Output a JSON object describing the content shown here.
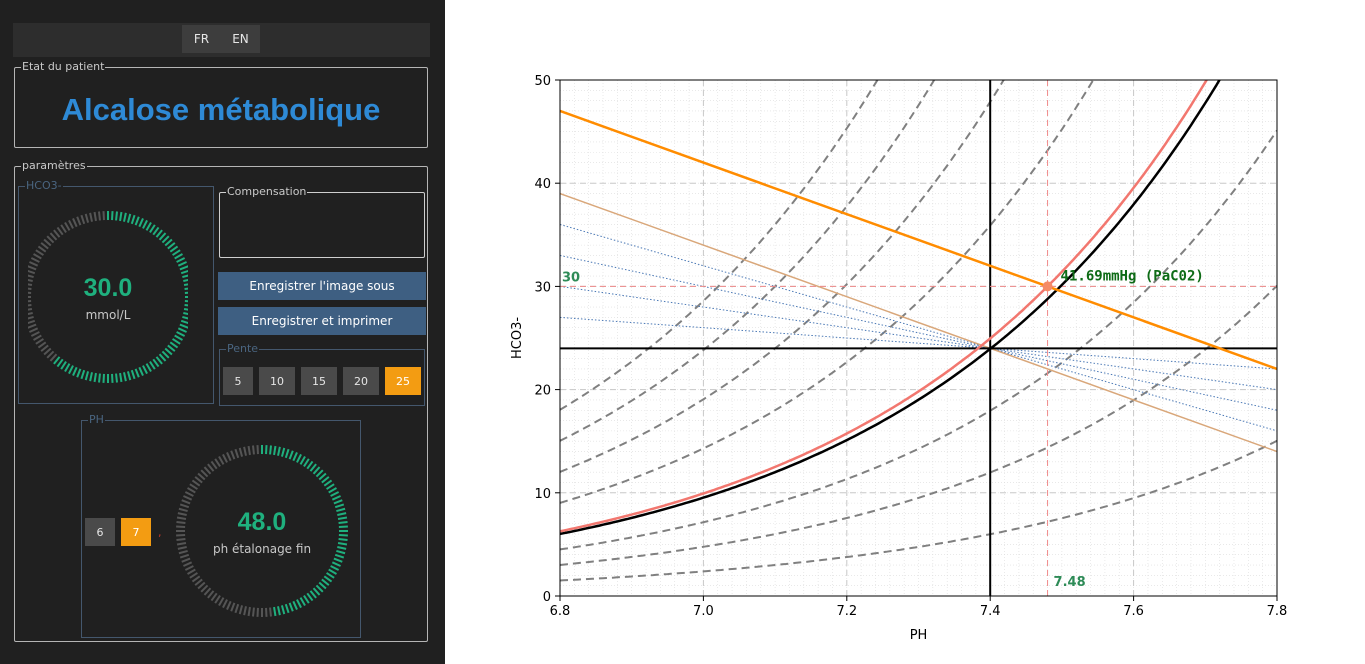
{
  "language": {
    "fr_label": "FR",
    "en_label": "EN",
    "selected": "EN"
  },
  "patient_state": {
    "group_title": "Etat du patient",
    "diagnosis": "Alcalose métabolique",
    "diagnosis_color": "#2e8ad6"
  },
  "parameters": {
    "group_title": "paramètres",
    "hco3": {
      "group_title": "HCO3-",
      "value": "30.0",
      "unit": "mmol/L",
      "gauge_fraction": 0.62
    },
    "compensation": {
      "group_title": "Compensation",
      "text": ""
    },
    "save_image_button": "Enregistrer l'image sous",
    "save_print_button": "Enregistrer et imprimer",
    "slope": {
      "group_title": "Pente",
      "options": [
        "5",
        "10",
        "15",
        "20",
        "25"
      ],
      "selected": "25"
    },
    "ph": {
      "group_title": "PH",
      "integer_options": [
        "6",
        "7"
      ],
      "selected_integer": "7",
      "separator": ",",
      "value": "48.0",
      "unit": "ph étalonage fin",
      "gauge_fraction": 0.48
    }
  },
  "colors": {
    "accent": "#f39c12",
    "gauge_active": "#1fb07e",
    "gauge_inactive": "#555555",
    "button_blue": "#3e5f82",
    "panel_bg": "#202020"
  },
  "chart_data": {
    "type": "line",
    "xlabel": "PH",
    "ylabel": "HCO3-",
    "xlim": [
      6.8,
      7.8
    ],
    "ylim": [
      0,
      50
    ],
    "xticks": [
      "6.8",
      "7.0",
      "7.2",
      "7.4",
      "7.6",
      "7.8"
    ],
    "yticks": [
      "0",
      "10",
      "20",
      "30",
      "40",
      "50"
    ],
    "grid": true,
    "isobar_pco2_values": [
      10,
      20,
      30,
      60,
      80,
      100,
      120
    ],
    "normal_pco2": 40,
    "patient_pco2": 41.69,
    "buffer_line": {
      "through": [
        7.4,
        24
      ],
      "slope_hco3_per_ph": -25
    },
    "patient_buffer_line": {
      "through": [
        7.48,
        30
      ],
      "slope_hco3_per_ph": -25
    },
    "dotted_buffer_slopes": [
      -5,
      -10,
      -15,
      -20
    ],
    "reference_lines": {
      "ph": 7.4,
      "hco3": 24
    },
    "patient_point": {
      "ph": 7.48,
      "hco3": 30
    },
    "annotations": {
      "hco3_label": "30",
      "ph_label": "7.48",
      "pco2_label": "41.69mmHg (PaC02)"
    }
  }
}
